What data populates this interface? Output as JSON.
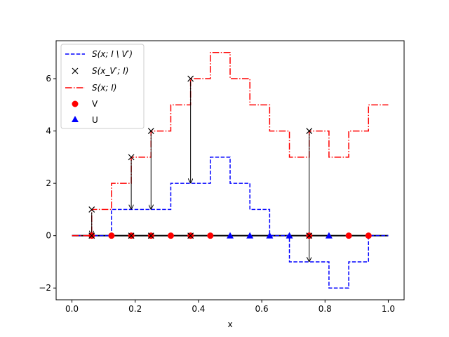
{
  "chart_data": {
    "type": "line",
    "xlabel": "x",
    "ylabel": "",
    "xlim": [
      -0.05,
      1.05
    ],
    "ylim": [
      -2.45,
      7.45
    ],
    "xticks": [
      0.0,
      0.2,
      0.4,
      0.6,
      0.8,
      1.0
    ],
    "xtick_labels": [
      "0.0",
      "0.2",
      "0.4",
      "0.6",
      "0.8",
      "1.0"
    ],
    "yticks": [
      -2,
      0,
      2,
      4,
      6
    ],
    "ytick_labels": [
      "−2",
      "0",
      "2",
      "4",
      "6"
    ],
    "legend_position": "top-left",
    "series": [
      {
        "name": "S(x; I \\ V′)",
        "style": "dashed",
        "color": "#0000ff",
        "x": [
          0.0,
          0.0625,
          0.125,
          0.1875,
          0.25,
          0.3125,
          0.375,
          0.4375,
          0.5,
          0.5625,
          0.625,
          0.6875,
          0.75,
          0.8125,
          0.875,
          0.9375
        ],
        "y": [
          0,
          0,
          1,
          1,
          1,
          2,
          2,
          3,
          2,
          1,
          0,
          -1,
          -1,
          -2,
          -1,
          0
        ],
        "x_end": 1.0
      },
      {
        "name": "S(x; I)",
        "style": "dashdot",
        "color": "#ff0000",
        "x": [
          0.0,
          0.0625,
          0.125,
          0.1875,
          0.25,
          0.3125,
          0.375,
          0.4375,
          0.5,
          0.5625,
          0.625,
          0.6875,
          0.75,
          0.8125,
          0.875,
          0.9375
        ],
        "y": [
          0,
          1,
          2,
          3,
          4,
          5,
          6,
          7,
          6,
          5,
          4,
          3,
          4,
          3,
          4,
          5
        ],
        "x_end": 1.0
      }
    ],
    "crosses": {
      "name": "S(x_V′; I)",
      "color": "#000000",
      "points": [
        {
          "x": 0.0625,
          "y": 1
        },
        {
          "x": 0.1875,
          "y": 3
        },
        {
          "x": 0.25,
          "y": 4
        },
        {
          "x": 0.375,
          "y": 6
        },
        {
          "x": 0.75,
          "y": 4
        }
      ],
      "arrow_targets": [
        0,
        1,
        1,
        2,
        -1
      ]
    },
    "baseline": {
      "x0": 0.0,
      "x1": 1.0,
      "y": 0,
      "color": "#000000"
    },
    "V_points": {
      "name": "V",
      "color": "#ff0000",
      "x": [
        0.0625,
        0.125,
        0.1875,
        0.25,
        0.3125,
        0.375,
        0.4375,
        0.75,
        0.875,
        0.9375
      ],
      "y": 0
    },
    "U_points": {
      "name": "U",
      "color": "#0000ff",
      "x": [
        0.5,
        0.5625,
        0.625,
        0.6875,
        0.8125
      ],
      "y": 0
    },
    "zero_crosses_x": [
      0.0625,
      0.1875,
      0.25,
      0.375,
      0.75
    ]
  },
  "legend": [
    {
      "key": "blue_dashed",
      "label": "S(x; I \\ V′)"
    },
    {
      "key": "cross",
      "label": "S(x_V′; I)"
    },
    {
      "key": "red_dashdot",
      "label": "S(x; I)"
    },
    {
      "key": "red_circle",
      "label": "V"
    },
    {
      "key": "blue_triangle",
      "label": "U"
    }
  ]
}
